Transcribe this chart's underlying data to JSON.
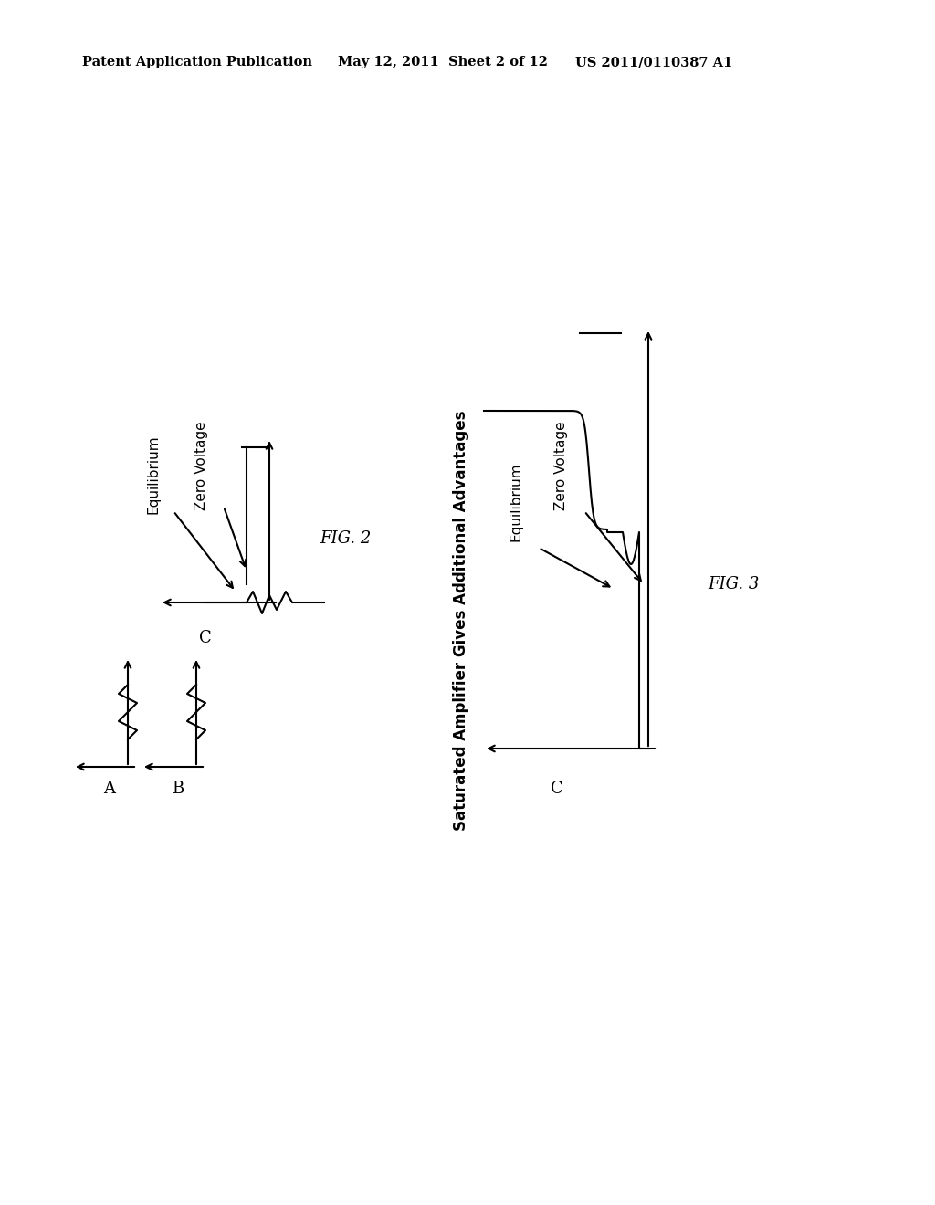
{
  "bg_color": "#ffffff",
  "header_left": "Patent Application Publication",
  "header_mid": "May 12, 2011  Sheet 2 of 12",
  "header_right": "US 2011/0110387 A1",
  "fig2_label": "FIG. 2",
  "fig3_label": "FIG. 3",
  "label_A": "A",
  "label_B": "B",
  "label_C": "C",
  "fig2_equilibrium": "Equilibrium",
  "fig2_zerovoltage": "Zero Voltage",
  "fig3_equilibrium": "Equilibrium",
  "fig3_zerovoltage": "Zero Voltage",
  "fig3_title": "Saturated Amplifier Gives Additional Advantages",
  "text_color": "#000000",
  "line_color": "#000000"
}
